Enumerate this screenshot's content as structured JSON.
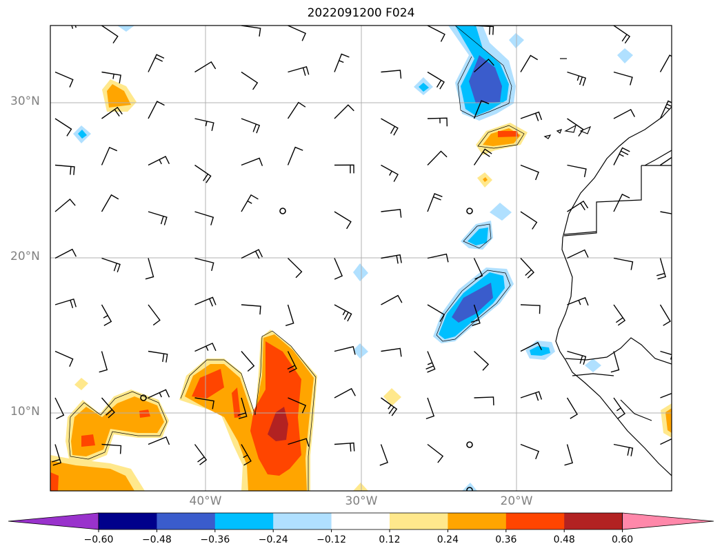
{
  "title": "2022091200 F024",
  "map": {
    "lon_range": [
      -50,
      -10
    ],
    "lat_range": [
      5,
      35
    ],
    "lat_labels": [
      "30°N",
      "20°N",
      "10°N"
    ],
    "lon_labels": [
      "40°W",
      "30°W",
      "20°W"
    ],
    "grid": true,
    "colors": {
      "gridline": "#b0b0b0",
      "frame": "#000000",
      "coast": "#000000",
      "barb": "#000000"
    }
  },
  "colorbar": {
    "ticks": [
      "−0.60",
      "−0.48",
      "−0.36",
      "−0.24",
      "−0.12",
      "0.12",
      "0.24",
      "0.36",
      "0.48",
      "0.60"
    ],
    "colors": [
      "#9932cc",
      "#00008b",
      "#3a5ccc",
      "#00bfff",
      "#b0e0ff",
      "#ffffff",
      "#ffe88c",
      "#ffa500",
      "#ff4500",
      "#b22222",
      "#ff88aa"
    ],
    "extend": "both"
  }
}
